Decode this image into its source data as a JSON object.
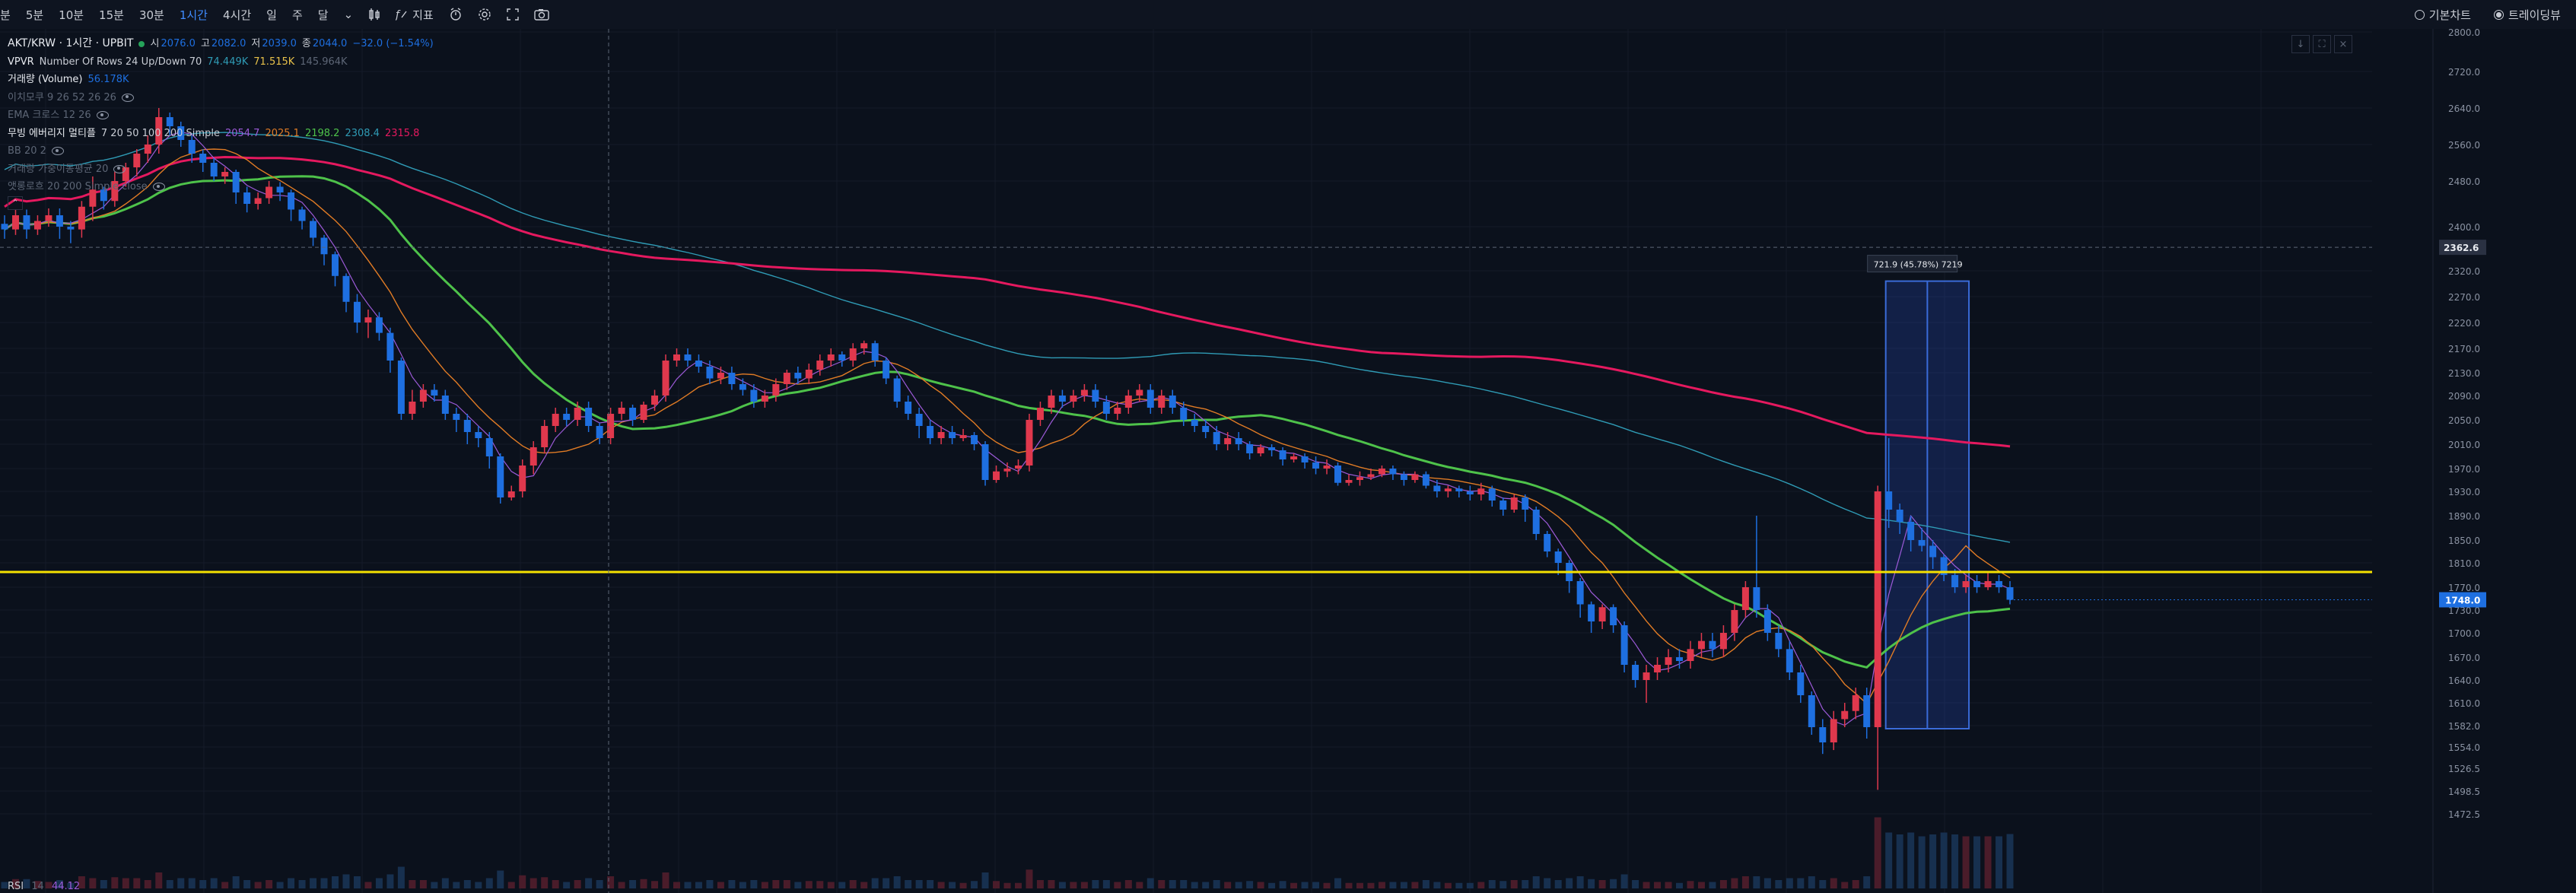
{
  "toolbar": {
    "timeframes": [
      {
        "label": "분",
        "active": false
      },
      {
        "label": "5분",
        "active": false
      },
      {
        "label": "10분",
        "active": false
      },
      {
        "label": "15분",
        "active": false
      },
      {
        "label": "30분",
        "active": false
      },
      {
        "label": "1시간",
        "active": true
      },
      {
        "label": "4시간",
        "active": false
      },
      {
        "label": "일",
        "active": false
      },
      {
        "label": "주",
        "active": false
      },
      {
        "label": "달",
        "active": false
      }
    ],
    "indicator_label": "지표",
    "basic_chart": "기본차트",
    "tradingview": "트레이딩뷰"
  },
  "legend": {
    "symbol": "AKT/KRW · 1시간 · UPBIT",
    "ohlc": {
      "o_label": "시",
      "o": "2076.0",
      "h_label": "고",
      "h": "2082.0",
      "l_label": "저",
      "l": "2039.0",
      "c_label": "종",
      "c": "2044.0",
      "change": "−32.0 (−1.54%)"
    },
    "vpvr": {
      "label": "VPVR",
      "params": "Number Of Rows 24 Up/Down 70",
      "up": "74.449K",
      "down": "71.515K",
      "total": "145.964K"
    },
    "volume": {
      "label": "거래량 (Volume)",
      "value": "56.178K"
    },
    "ichimoku": {
      "label": "이치모쿠 9 26 52 26 26"
    },
    "ema_cross": {
      "label": "EMA 크로스 12 26"
    },
    "ma_ribbon": {
      "label": "무빙 에버리지 멀티플",
      "params": "7 20 50 100 200 Simple",
      "values": [
        "2054.7",
        "2025.1",
        "2198.2",
        "2308.4",
        "2315.8"
      ]
    },
    "bb": {
      "label": "BB 20 2"
    },
    "vwma": {
      "label": "거래량 가중이동평균 20"
    },
    "ama": {
      "label": "앳롱로흐 20 200 Simple close"
    }
  },
  "rsi": {
    "label": "RSI",
    "params": "14",
    "value": "44.12"
  },
  "chart_data": {
    "type": "candlestick",
    "symbol": "AKT/KRW",
    "interval": "1h",
    "y_axis": {
      "ticks": [
        2800.0,
        2720.0,
        2640.0,
        2560.0,
        2480.0,
        2400.0,
        2320.0,
        2270.0,
        2220.0,
        2170.0,
        2130.0,
        2090.0,
        2050.0,
        2010.0,
        1970.0,
        1930.0,
        1890.0,
        1850.0,
        1810.0,
        1770.0,
        1730.0,
        1700.0,
        1670.0,
        1640.0,
        1610.0,
        1582.0,
        1554.0,
        1526.5,
        1498.5,
        1472.5
      ],
      "labels": [
        "2800.0",
        "2720.0",
        "2640.0",
        "2560.0",
        "2480.0",
        "2400.0",
        "2320.0",
        "2270.0",
        "2220.0",
        "2170.0",
        "2130.0",
        "2090.0",
        "2050.0",
        "2010.0",
        "1970.0",
        "1930.0",
        "1890.0",
        "1850.0",
        "1810.0",
        "1770.0",
        "1730.0",
        "1700.0",
        "1670.0",
        "1640.0",
        "1610.0",
        "1582.0",
        "1554.0",
        "1526.5",
        "1498.5",
        "1472.5"
      ],
      "crosshair_price": "2362.6",
      "last_price": "1748.0"
    },
    "horizontal_line": {
      "price": 1795,
      "color": "#f5e100"
    },
    "measure": {
      "label": "721.9 (45.78%) 7219",
      "low": 1578,
      "high": 2300
    },
    "colors": {
      "up": "#e0384d",
      "down": "#1e6fe0",
      "ma7": "#9c5ad8",
      "ma20": "#e07b25",
      "ma50": "#4ec24a",
      "ma100": "#2f9bb5",
      "ma200": "#e5195f"
    },
    "candles": [
      [
        2405,
        2395,
        2378,
        2420
      ],
      [
        2395,
        2420,
        2385,
        2430
      ],
      [
        2420,
        2395,
        2378,
        2430
      ],
      [
        2395,
        2410,
        2385,
        2420
      ],
      [
        2410,
        2420,
        2400,
        2432
      ],
      [
        2420,
        2400,
        2378,
        2432
      ],
      [
        2400,
        2395,
        2370,
        2410
      ],
      [
        2395,
        2435,
        2380,
        2445
      ],
      [
        2435,
        2465,
        2410,
        2490
      ],
      [
        2465,
        2445,
        2430,
        2470
      ],
      [
        2445,
        2480,
        2435,
        2500
      ],
      [
        2480,
        2510,
        2470,
        2520
      ],
      [
        2510,
        2540,
        2490,
        2550
      ],
      [
        2540,
        2560,
        2520,
        2580
      ],
      [
        2560,
        2620,
        2540,
        2640
      ],
      [
        2620,
        2600,
        2580,
        2630
      ],
      [
        2600,
        2570,
        2555,
        2610
      ],
      [
        2570,
        2540,
        2520,
        2580
      ],
      [
        2540,
        2520,
        2500,
        2550
      ],
      [
        2520,
        2490,
        2480,
        2530
      ],
      [
        2490,
        2500,
        2475,
        2510
      ],
      [
        2500,
        2460,
        2440,
        2505
      ],
      [
        2460,
        2440,
        2425,
        2470
      ],
      [
        2440,
        2450,
        2430,
        2460
      ],
      [
        2450,
        2470,
        2440,
        2480
      ],
      [
        2470,
        2460,
        2445,
        2478
      ],
      [
        2460,
        2430,
        2410,
        2465
      ],
      [
        2430,
        2410,
        2395,
        2435
      ],
      [
        2410,
        2380,
        2365,
        2415
      ],
      [
        2380,
        2350,
        2330,
        2385
      ],
      [
        2350,
        2310,
        2290,
        2355
      ],
      [
        2310,
        2260,
        2240,
        2315
      ],
      [
        2260,
        2220,
        2200,
        2275
      ],
      [
        2220,
        2230,
        2190,
        2245
      ],
      [
        2230,
        2200,
        2185,
        2240
      ],
      [
        2200,
        2150,
        2130,
        2210
      ],
      [
        2150,
        2060,
        2050,
        2155
      ],
      [
        2060,
        2080,
        2050,
        2100
      ],
      [
        2080,
        2100,
        2070,
        2110
      ],
      [
        2100,
        2090,
        2080,
        2110
      ],
      [
        2090,
        2060,
        2050,
        2100
      ],
      [
        2060,
        2050,
        2030,
        2070
      ],
      [
        2050,
        2030,
        2010,
        2060
      ],
      [
        2030,
        2020,
        2005,
        2040
      ],
      [
        2020,
        1990,
        1970,
        2030
      ],
      [
        1990,
        1920,
        1910,
        1995
      ],
      [
        1920,
        1930,
        1915,
        1940
      ],
      [
        1930,
        1975,
        1920,
        1985
      ],
      [
        1975,
        2005,
        1960,
        2015
      ],
      [
        2005,
        2040,
        1995,
        2050
      ],
      [
        2040,
        2060,
        2030,
        2070
      ],
      [
        2060,
        2050,
        2040,
        2070
      ],
      [
        2050,
        2070,
        2040,
        2080
      ],
      [
        2070,
        2040,
        2030,
        2080
      ],
      [
        2040,
        2020,
        2010,
        2045
      ],
      [
        2020,
        2060,
        2010,
        2070
      ],
      [
        2060,
        2070,
        2050,
        2080
      ],
      [
        2070,
        2050,
        2040,
        2075
      ],
      [
        2050,
        2075,
        2045,
        2080
      ],
      [
        2075,
        2090,
        2065,
        2100
      ],
      [
        2090,
        2150,
        2080,
        2160
      ],
      [
        2150,
        2160,
        2140,
        2170
      ],
      [
        2160,
        2150,
        2140,
        2170
      ],
      [
        2150,
        2140,
        2130,
        2160
      ],
      [
        2140,
        2120,
        2110,
        2150
      ],
      [
        2120,
        2130,
        2110,
        2140
      ],
      [
        2130,
        2110,
        2100,
        2140
      ],
      [
        2110,
        2100,
        2090,
        2120
      ],
      [
        2100,
        2080,
        2070,
        2110
      ],
      [
        2080,
        2090,
        2070,
        2100
      ],
      [
        2090,
        2110,
        2080,
        2120
      ],
      [
        2110,
        2130,
        2100,
        2135
      ],
      [
        2130,
        2120,
        2110,
        2140
      ],
      [
        2120,
        2135,
        2110,
        2145
      ],
      [
        2135,
        2150,
        2125,
        2160
      ],
      [
        2150,
        2160,
        2140,
        2170
      ],
      [
        2160,
        2150,
        2140,
        2165
      ],
      [
        2150,
        2170,
        2140,
        2180
      ],
      [
        2170,
        2180,
        2160,
        2185
      ],
      [
        2180,
        2150,
        2140,
        2185
      ],
      [
        2150,
        2120,
        2110,
        2155
      ],
      [
        2120,
        2080,
        2070,
        2125
      ],
      [
        2080,
        2060,
        2050,
        2090
      ],
      [
        2060,
        2040,
        2020,
        2070
      ],
      [
        2040,
        2020,
        2010,
        2050
      ],
      [
        2020,
        2030,
        2010,
        2040
      ],
      [
        2030,
        2020,
        2010,
        2040
      ],
      [
        2020,
        2025,
        2015,
        2035
      ],
      [
        2025,
        2010,
        2000,
        2030
      ],
      [
        2010,
        1950,
        1940,
        2015
      ],
      [
        1950,
        1965,
        1945,
        1975
      ],
      [
        1965,
        1970,
        1955,
        1980
      ],
      [
        1970,
        1975,
        1960,
        1985
      ],
      [
        1975,
        2050,
        1965,
        2060
      ],
      [
        2050,
        2070,
        2040,
        2080
      ],
      [
        2070,
        2090,
        2060,
        2100
      ],
      [
        2090,
        2080,
        2070,
        2100
      ],
      [
        2080,
        2090,
        2070,
        2100
      ],
      [
        2090,
        2100,
        2080,
        2110
      ],
      [
        2100,
        2080,
        2070,
        2110
      ],
      [
        2080,
        2060,
        2050,
        2090
      ],
      [
        2060,
        2070,
        2050,
        2080
      ],
      [
        2070,
        2090,
        2060,
        2100
      ],
      [
        2090,
        2100,
        2080,
        2110
      ],
      [
        2100,
        2070,
        2060,
        2110
      ],
      [
        2070,
        2090,
        2060,
        2100
      ],
      [
        2090,
        2070,
        2060,
        2100
      ],
      [
        2070,
        2050,
        2040,
        2080
      ],
      [
        2050,
        2040,
        2030,
        2060
      ],
      [
        2040,
        2030,
        2020,
        2050
      ],
      [
        2030,
        2010,
        2000,
        2040
      ],
      [
        2010,
        2020,
        2000,
        2030
      ],
      [
        2020,
        2010,
        2000,
        2030
      ],
      [
        2010,
        1995,
        1985,
        2015
      ],
      [
        1995,
        2005,
        1990,
        2010
      ],
      [
        2005,
        2000,
        1990,
        2010
      ],
      [
        2000,
        1985,
        1975,
        2005
      ],
      [
        1985,
        1990,
        1980,
        1995
      ],
      [
        1990,
        1980,
        1970,
        1995
      ],
      [
        1980,
        1970,
        1960,
        1990
      ],
      [
        1970,
        1975,
        1960,
        1985
      ],
      [
        1975,
        1945,
        1940,
        1980
      ],
      [
        1945,
        1950,
        1940,
        1960
      ],
      [
        1950,
        1955,
        1940,
        1965
      ],
      [
        1955,
        1960,
        1950,
        1970
      ],
      [
        1960,
        1970,
        1955,
        1975
      ],
      [
        1970,
        1960,
        1950,
        1975
      ],
      [
        1960,
        1950,
        1940,
        1965
      ],
      [
        1950,
        1960,
        1945,
        1965
      ],
      [
        1960,
        1940,
        1935,
        1965
      ],
      [
        1940,
        1930,
        1920,
        1950
      ],
      [
        1930,
        1935,
        1920,
        1940
      ],
      [
        1935,
        1930,
        1920,
        1940
      ],
      [
        1930,
        1925,
        1915,
        1940
      ],
      [
        1925,
        1935,
        1915,
        1945
      ],
      [
        1935,
        1915,
        1905,
        1940
      ],
      [
        1915,
        1900,
        1890,
        1920
      ],
      [
        1900,
        1920,
        1895,
        1925
      ],
      [
        1920,
        1900,
        1880,
        1925
      ],
      [
        1900,
        1860,
        1850,
        1905
      ],
      [
        1860,
        1830,
        1820,
        1865
      ],
      [
        1830,
        1810,
        1790,
        1835
      ],
      [
        1810,
        1780,
        1760,
        1815
      ],
      [
        1780,
        1740,
        1720,
        1785
      ],
      [
        1740,
        1715,
        1700,
        1745
      ],
      [
        1715,
        1735,
        1705,
        1740
      ],
      [
        1735,
        1710,
        1700,
        1740
      ],
      [
        1710,
        1660,
        1650,
        1715
      ],
      [
        1660,
        1640,
        1630,
        1665
      ],
      [
        1640,
        1650,
        1610,
        1660
      ],
      [
        1650,
        1660,
        1640,
        1670
      ],
      [
        1660,
        1670,
        1650,
        1680
      ],
      [
        1670,
        1665,
        1655,
        1680
      ],
      [
        1665,
        1680,
        1655,
        1690
      ],
      [
        1680,
        1690,
        1670,
        1700
      ],
      [
        1690,
        1680,
        1670,
        1700
      ],
      [
        1680,
        1700,
        1670,
        1710
      ],
      [
        1700,
        1730,
        1690,
        1740
      ],
      [
        1730,
        1770,
        1720,
        1780
      ],
      [
        1770,
        1730,
        1720,
        1890
      ],
      [
        1730,
        1700,
        1690,
        1740
      ],
      [
        1700,
        1680,
        1670,
        1710
      ],
      [
        1680,
        1650,
        1640,
        1690
      ],
      [
        1650,
        1620,
        1610,
        1660
      ],
      [
        1620,
        1580,
        1570,
        1625
      ],
      [
        1580,
        1560,
        1545,
        1590
      ],
      [
        1560,
        1590,
        1550,
        1600
      ],
      [
        1590,
        1600,
        1580,
        1610
      ],
      [
        1600,
        1620,
        1590,
        1630
      ],
      [
        1620,
        1580,
        1565,
        1630
      ],
      [
        1580,
        1930,
        1500,
        1940
      ],
      [
        1930,
        1900,
        1870,
        2020
      ],
      [
        1900,
        1880,
        1860,
        1910
      ],
      [
        1880,
        1850,
        1830,
        1890
      ],
      [
        1850,
        1840,
        1830,
        1870
      ],
      [
        1840,
        1820,
        1800,
        1850
      ],
      [
        1820,
        1790,
        1780,
        1825
      ],
      [
        1790,
        1770,
        1760,
        1800
      ],
      [
        1770,
        1780,
        1760,
        1790
      ],
      [
        1780,
        1770,
        1760,
        1790
      ],
      [
        1770,
        1780,
        1765,
        1795
      ],
      [
        1780,
        1770,
        1760,
        1790
      ],
      [
        1770,
        1748,
        1740,
        1780
      ]
    ],
    "volume_shown": true
  }
}
